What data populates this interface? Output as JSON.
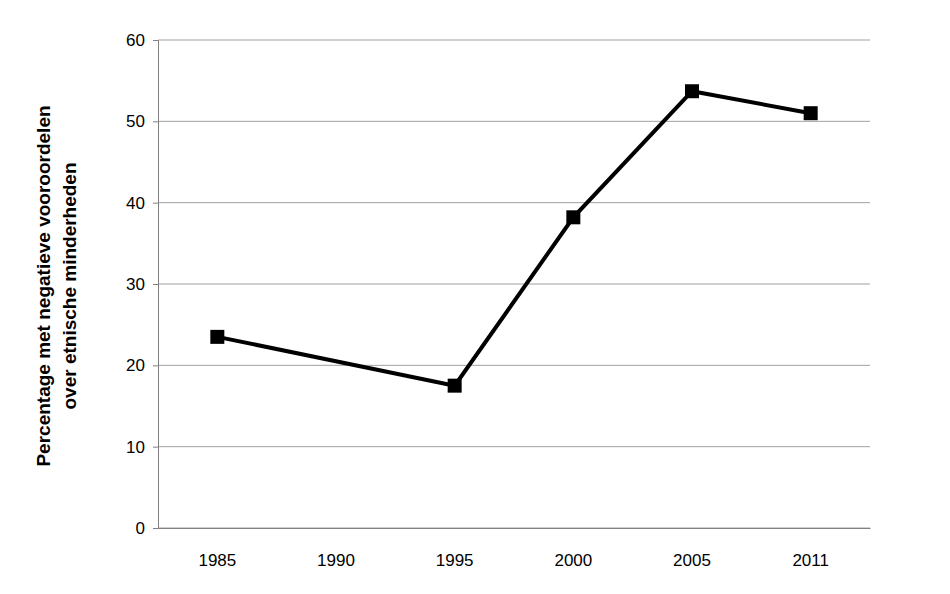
{
  "chart_data": {
    "type": "line",
    "ylabel": [
      "Percentage met negatieve vooroordelen",
      "over etnische minderheden"
    ],
    "categories": [
      "1985",
      "1990",
      "1995",
      "2000",
      "2005",
      "2011"
    ],
    "values": [
      23.5,
      null,
      17.5,
      38.2,
      53.7,
      51.0
    ],
    "color": "#000000",
    "marker": "square",
    "ylim": [
      0,
      60
    ],
    "yticks": [
      0,
      10,
      20,
      30,
      40,
      50,
      60
    ],
    "grid": true
  }
}
